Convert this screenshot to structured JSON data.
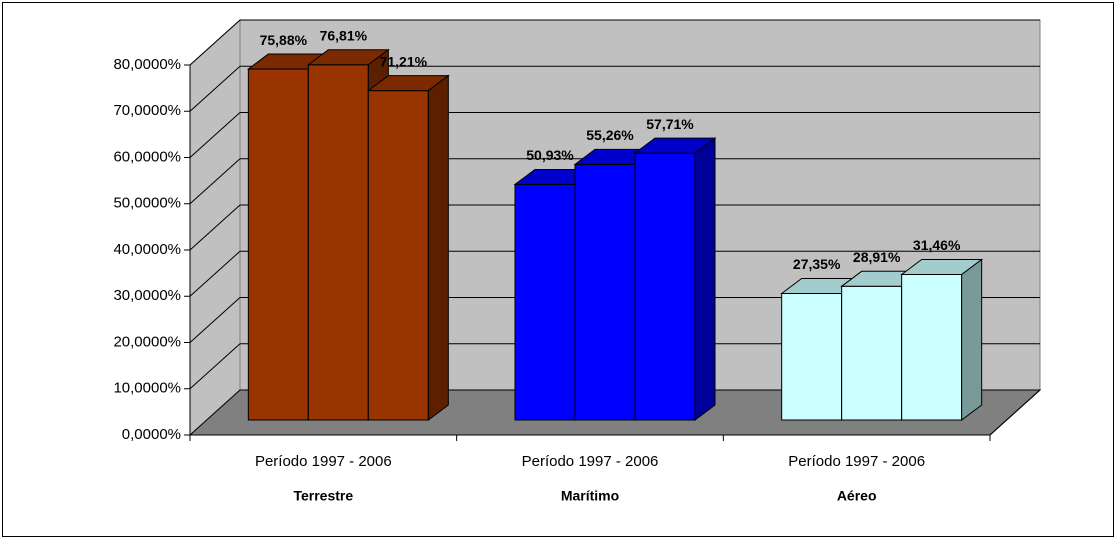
{
  "chart_data": {
    "type": "bar3d",
    "categories": [
      "Período 1997 - 2006",
      "Período 1997 - 2006",
      "Período 1997 - 2006"
    ],
    "groups": [
      {
        "name": "Terrestre",
        "color": "#993300",
        "values": [
          75.88,
          76.81,
          71.21
        ],
        "value_labels": [
          "75,88%",
          "76,81%",
          "71,21%"
        ]
      },
      {
        "name": "Marítimo",
        "color": "#0000ff",
        "values": [
          50.93,
          55.26,
          57.71
        ],
        "value_labels": [
          "50,93%",
          "55,26%",
          "57,71%"
        ]
      },
      {
        "name": "Aéreo",
        "color": "#ccffff",
        "values": [
          27.35,
          28.91,
          31.46
        ],
        "value_labels": [
          "27,35%",
          "28,91%",
          "31,46%"
        ]
      }
    ],
    "ylim": [
      0,
      80
    ],
    "yticks": [
      {
        "value": 0,
        "label": "0,0000%"
      },
      {
        "value": 10,
        "label": "10,0000%"
      },
      {
        "value": 20,
        "label": "20,0000%"
      },
      {
        "value": 30,
        "label": "30,0000%"
      },
      {
        "value": 40,
        "label": "40,0000%"
      },
      {
        "value": 50,
        "label": "50,0000%"
      },
      {
        "value": 60,
        "label": "60,0000%"
      },
      {
        "value": 70,
        "label": "70,0000%"
      },
      {
        "value": 80,
        "label": "80,0000%"
      }
    ],
    "grid": true
  }
}
